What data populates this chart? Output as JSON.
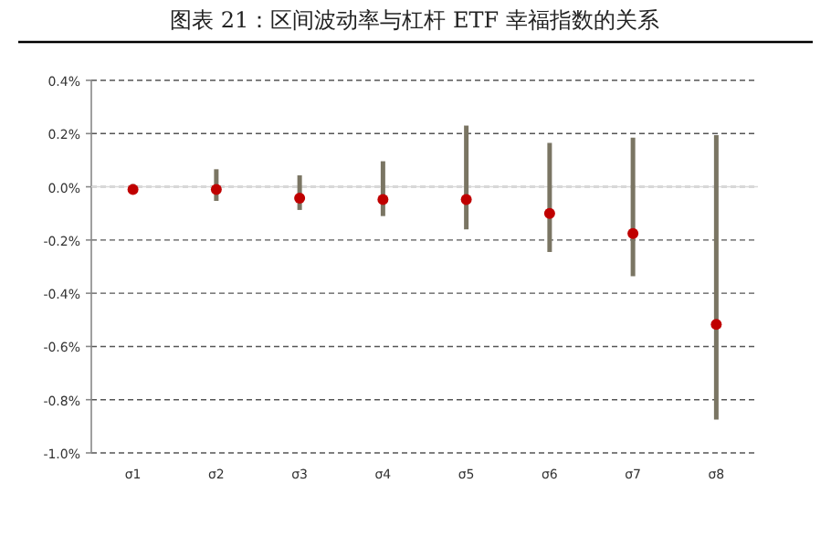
{
  "chart_data": {
    "type": "scatter",
    "title": "图表 21：区间波动率与杠杆 ETF 幸福指数的关系",
    "categories": [
      "σ1",
      "σ2",
      "σ3",
      "σ4",
      "σ5",
      "σ6",
      "σ7",
      "σ8"
    ],
    "series": [
      {
        "color": "#c00000",
        "values": [
          -0.01,
          -0.01,
          -0.043,
          -0.048,
          -0.048,
          -0.1,
          -0.176,
          -0.517
        ],
        "errors": [
          [
            -0.025,
            0.01
          ],
          [
            -0.053,
            0.066
          ],
          [
            -0.087,
            0.043
          ],
          [
            -0.11,
            0.096
          ],
          [
            -0.16,
            0.23
          ],
          [
            -0.245,
            0.165
          ],
          [
            -0.336,
            0.185
          ],
          [
            -0.875,
            0.194
          ]
        ]
      }
    ],
    "ylim": [
      -1.0,
      0.4
    ],
    "yticks": [
      {
        "value": -1.0,
        "label": "-1.0%"
      },
      {
        "value": -0.8,
        "label": "-0.8%"
      },
      {
        "value": -0.6,
        "label": "-0.6%"
      },
      {
        "value": -0.4,
        "label": "-0.4%"
      },
      {
        "value": -0.2,
        "label": "-0.2%"
      },
      {
        "value": 0.0,
        "label": "0.0%"
      },
      {
        "value": 0.2,
        "label": "0.2%"
      },
      {
        "value": 0.4,
        "label": "0.4%"
      }
    ],
    "grid": "y",
    "marker": "circle"
  }
}
